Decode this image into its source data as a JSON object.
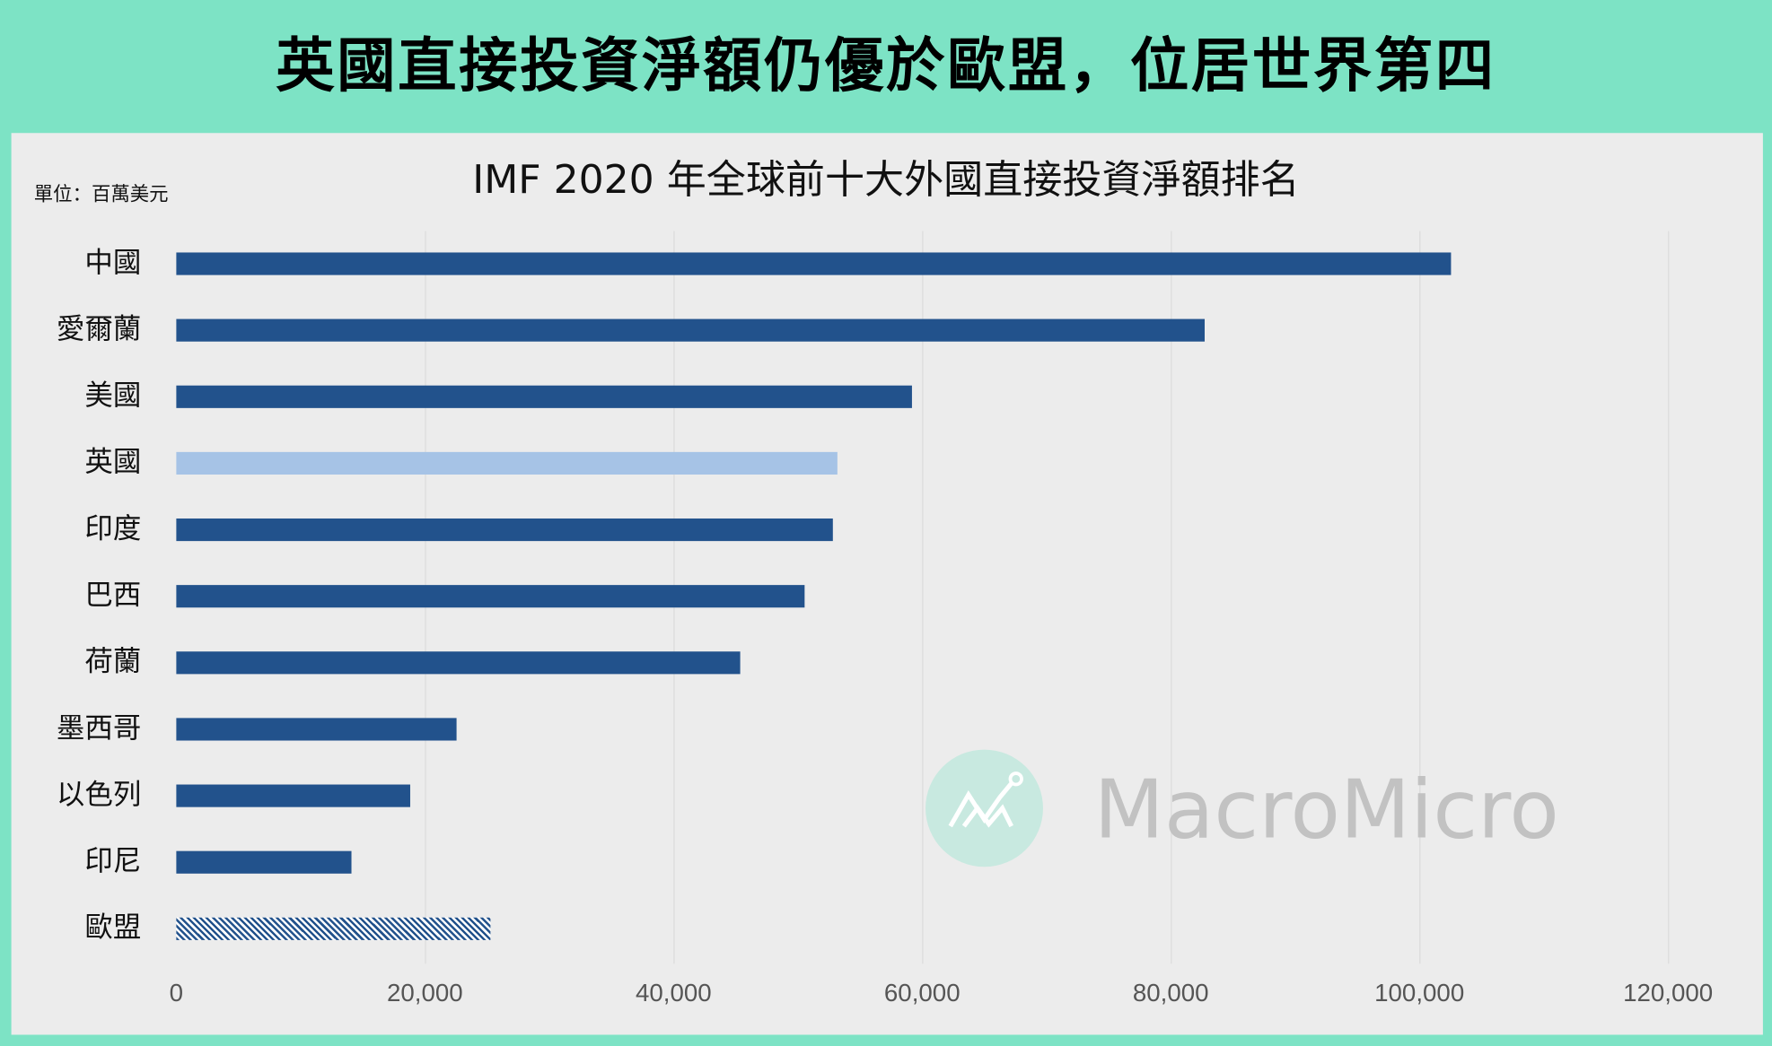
{
  "header": {
    "title": "英國直接投資淨額仍優於歐盟，位居世界第四"
  },
  "watermark": {
    "text": "MacroMicro"
  },
  "chart_data": {
    "type": "bar",
    "orientation": "horizontal",
    "title": "IMF 2020 年全球前十大外國直接投資淨額排名",
    "unit_label": "單位：百萬美元",
    "categories": [
      "中國",
      "愛爾蘭",
      "美國",
      "英國",
      "印度",
      "巴西",
      "荷蘭",
      "墨西哥",
      "以色列",
      "印尼",
      "歐盟"
    ],
    "values": [
      102500,
      82700,
      59200,
      53200,
      52800,
      50500,
      45400,
      22500,
      18800,
      14100,
      25300
    ],
    "bar_styles": [
      "normal",
      "normal",
      "normal",
      "highlight",
      "normal",
      "normal",
      "normal",
      "normal",
      "normal",
      "normal",
      "hatched"
    ],
    "colors": {
      "normal": "#22528c",
      "highlight": "#a6c3e6",
      "hatched": "#22528c"
    },
    "xlim": [
      0,
      120000
    ],
    "xticks": [
      "0",
      "20,000",
      "40,000",
      "60,000",
      "80,000",
      "100,000",
      "120,000"
    ],
    "grid": "vertical",
    "legend": "none"
  }
}
